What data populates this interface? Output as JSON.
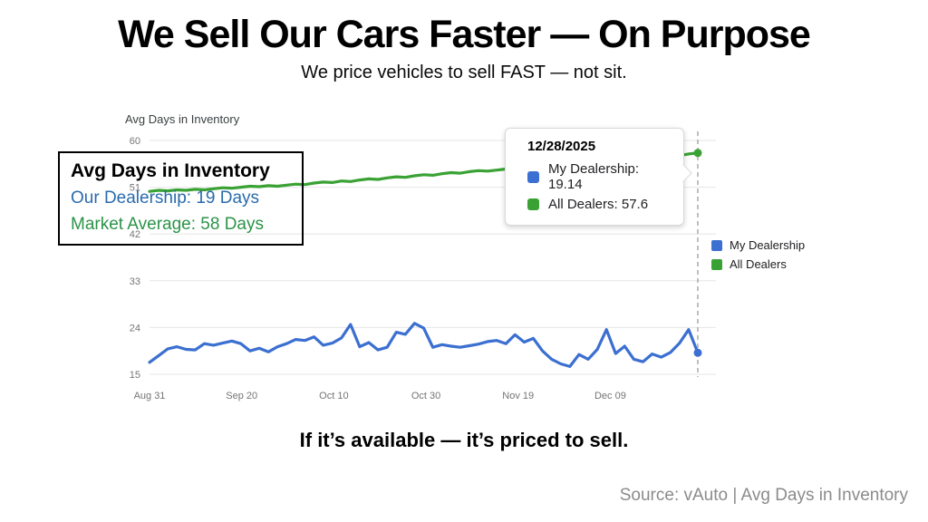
{
  "header": {
    "title": "We Sell Our Cars Faster — On Purpose",
    "subtitle": "We price vehicles to sell FAST — not sit."
  },
  "annotation_box": {
    "title": "Avg Days in Inventory",
    "our_dealership": "Our Dealership: 19 Days",
    "market_average": "Market Average: 58 Days",
    "our_dealership_color": "#2a6bad",
    "market_average_color": "#2b9348"
  },
  "tooltip": {
    "date": "12/28/2025",
    "rows": [
      {
        "label": "My Dealership: 19.14",
        "color": "#3b6fd1"
      },
      {
        "label": "All Dealers: 57.6",
        "color": "#3aa234"
      }
    ]
  },
  "legend": {
    "items": [
      {
        "label": "My Dealership",
        "color": "#3b6fd1"
      },
      {
        "label": "All Dealers",
        "color": "#3aa234"
      }
    ]
  },
  "footer": {
    "cta": "If it’s available — it’s priced to sell.",
    "source": "Source: vAuto | Avg Days in Inventory"
  },
  "chart_data": {
    "type": "line",
    "title": "Avg Days in Inventory",
    "x_tick_labels": [
      "Aug 31",
      "Sep 20",
      "Oct 10",
      "Oct 30",
      "Nov 19",
      "Dec 09"
    ],
    "x_tick_day_offsets": [
      0,
      20,
      40,
      60,
      80,
      100
    ],
    "x_total_days": 119,
    "x_end_date": "12/28/2025",
    "y_ticks": [
      15,
      24,
      33,
      42,
      51,
      60
    ],
    "ylim": [
      15,
      60
    ],
    "grid": true,
    "legend_position": "right",
    "gridline_color": "#e6e6e6",
    "crosshair_color": "#9e9e9e",
    "crosshair_day_offset": 119,
    "series": [
      {
        "name": "My Dealership",
        "color": "#3b6fd1",
        "end_value": 19.14,
        "values": [
          17.3,
          18.6,
          19.9,
          20.3,
          19.8,
          19.7,
          20.9,
          20.6,
          21.0,
          21.4,
          20.9,
          19.5,
          20.0,
          19.3,
          20.3,
          20.9,
          21.7,
          21.5,
          22.2,
          20.6,
          21.0,
          22.0,
          24.6,
          20.3,
          21.1,
          19.7,
          20.2,
          23.1,
          22.7,
          24.8,
          23.9,
          20.2,
          20.7,
          20.4,
          20.2,
          20.5,
          20.8,
          21.3,
          21.5,
          20.9,
          22.6,
          21.2,
          21.9,
          19.5,
          17.9,
          17.0,
          16.5,
          18.8,
          17.9,
          19.8,
          23.6,
          19.0,
          20.4,
          17.9,
          17.4,
          18.9,
          18.3,
          19.2,
          21.0,
          23.6,
          19.14
        ]
      },
      {
        "name": "All Dealers",
        "color": "#3aa234",
        "end_value": 57.6,
        "values": [
          50.2,
          50.4,
          50.3,
          50.5,
          50.4,
          50.6,
          50.5,
          50.7,
          50.9,
          50.8,
          51.0,
          51.2,
          51.1,
          51.3,
          51.2,
          51.4,
          51.6,
          51.5,
          51.8,
          52.0,
          51.9,
          52.2,
          52.1,
          52.4,
          52.6,
          52.5,
          52.8,
          53.0,
          52.9,
          53.2,
          53.4,
          53.3,
          53.6,
          53.8,
          53.7,
          54.0,
          54.2,
          54.1,
          54.3,
          54.5,
          54.4,
          54.7,
          54.9,
          54.8,
          55.1,
          55.3,
          55.2,
          55.5,
          55.7,
          55.6,
          55.9,
          56.1,
          56.0,
          56.3,
          56.5,
          56.4,
          56.7,
          56.9,
          57.1,
          57.4,
          57.6
        ]
      }
    ]
  }
}
